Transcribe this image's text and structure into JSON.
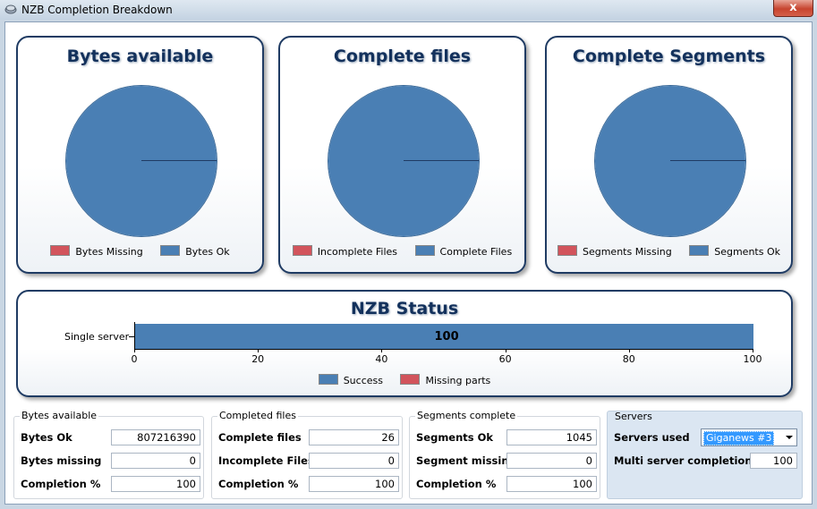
{
  "window": {
    "title": "NZB Completion Breakdown",
    "close_glyph": "x"
  },
  "pies": [
    {
      "title": "Bytes available",
      "legend": [
        "Bytes Missing",
        "Bytes Ok"
      ]
    },
    {
      "title": "Complete files",
      "legend": [
        "Incomplete Files",
        "Complete Files"
      ]
    },
    {
      "title": "Complete Segments",
      "legend": [
        "Segments Missing",
        "Segments Ok"
      ]
    }
  ],
  "status": {
    "title": "NZB Status",
    "category": "Single server",
    "bar_label": "100",
    "ticks": [
      "0",
      "20",
      "40",
      "60",
      "80",
      "100"
    ],
    "legend": [
      "Success",
      "Missing parts"
    ]
  },
  "chart_data": [
    {
      "type": "pie",
      "title": "Bytes available",
      "labels": [
        "Bytes Missing",
        "Bytes Ok"
      ],
      "values": [
        0,
        100
      ]
    },
    {
      "type": "pie",
      "title": "Complete files",
      "labels": [
        "Incomplete Files",
        "Complete Files"
      ],
      "values": [
        0,
        100
      ]
    },
    {
      "type": "pie",
      "title": "Complete Segments",
      "labels": [
        "Segments Missing",
        "Segments Ok"
      ],
      "values": [
        0,
        100
      ]
    },
    {
      "type": "bar",
      "title": "NZB Status",
      "categories": [
        "Single server"
      ],
      "series": [
        {
          "name": "Success",
          "values": [
            100
          ]
        },
        {
          "name": "Missing parts",
          "values": [
            0
          ]
        }
      ],
      "xlim": [
        0,
        100
      ]
    }
  ],
  "colors": {
    "success": "#4a7fb4",
    "missing": "#d2545c",
    "title": "#13315c"
  },
  "groups": {
    "bytes": {
      "label": "Bytes available",
      "rows": [
        {
          "label": "Bytes Ok",
          "value": "807216390"
        },
        {
          "label": "Bytes missing",
          "value": "0"
        },
        {
          "label": "Completion %",
          "value": "100"
        }
      ]
    },
    "files": {
      "label": "Completed files",
      "rows": [
        {
          "label": "Complete files",
          "value": "26"
        },
        {
          "label": "Incomplete Files",
          "value": "0"
        },
        {
          "label": "Completion %",
          "value": "100"
        }
      ]
    },
    "segments": {
      "label": "Segments complete",
      "rows": [
        {
          "label": "Segments Ok",
          "value": "1045"
        },
        {
          "label": "Segment missing",
          "value": "0"
        },
        {
          "label": "Completion %",
          "value": "100"
        }
      ]
    },
    "servers": {
      "label": "Servers",
      "used_label": "Servers used",
      "used_value": "Giganews #3",
      "multi_label": "Multi server completion %",
      "multi_value": "100"
    }
  }
}
